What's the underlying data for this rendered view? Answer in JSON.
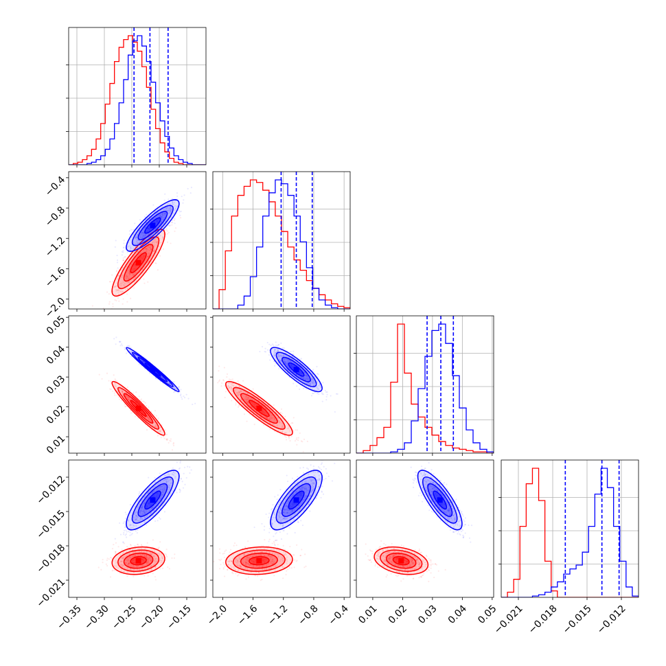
{
  "chart_data": {
    "type": "corner",
    "title": "",
    "grid": true,
    "legend": "none",
    "parameters": [
      {
        "label": "",
        "range": [
          -0.365,
          -0.115
        ],
        "ticks": [
          -0.35,
          -0.3,
          -0.25,
          -0.2,
          -0.15
        ],
        "tick_labels": [
          "−0.35",
          "−0.30",
          "−0.25",
          "−0.20",
          "−0.15"
        ]
      },
      {
        "label": "",
        "range": [
          -2.13,
          -0.32
        ],
        "ticks": [
          -2.0,
          -1.6,
          -1.2,
          -0.8,
          -0.4
        ],
        "tick_labels": [
          "−2.0",
          "−1.6",
          "−1.2",
          "−0.8",
          "−0.4"
        ]
      },
      {
        "label": "",
        "range": [
          0.0045,
          0.0505
        ],
        "ticks": [
          0.01,
          0.02,
          0.03,
          0.04,
          0.05
        ],
        "tick_labels": [
          "0.01",
          "0.02",
          "0.03",
          "0.04",
          "0.05"
        ]
      },
      {
        "label": "",
        "range": [
          -0.0225,
          -0.0105
        ],
        "ticks": [
          -0.021,
          -0.018,
          -0.015,
          -0.012
        ],
        "tick_labels": [
          "−0.021",
          "−0.018",
          "−0.015",
          "−0.012"
        ]
      }
    ],
    "series": [
      {
        "name": "",
        "color": "#ff0000",
        "means": [
          -0.238,
          -1.52,
          0.0195,
          -0.0193
        ],
        "sds": [
          0.024,
          0.22,
          0.0045,
          0.0006
        ],
        "correlations": [
          [
            1,
            2,
            0.85
          ],
          [
            1,
            3,
            -0.95
          ],
          [
            1,
            4,
            0.15
          ],
          [
            2,
            3,
            -0.9
          ],
          [
            2,
            4,
            0.1
          ],
          [
            3,
            4,
            -0.3
          ]
        ],
        "marginals": [
          [
            0,
            1,
            2,
            4,
            7,
            12,
            20,
            32,
            47,
            63,
            80,
            91,
            97,
            100,
            95,
            88,
            76,
            60,
            43,
            28,
            17,
            10,
            5,
            2,
            1,
            0,
            0,
            0,
            0,
            0
          ],
          [
            0,
            15,
            45,
            72,
            88,
            95,
            100,
            98,
            92,
            83,
            72,
            60,
            48,
            38,
            30,
            22,
            16,
            11,
            7,
            4,
            2,
            1
          ],
          [
            0,
            2,
            6,
            12,
            20,
            55,
            100,
            62,
            38,
            28,
            20,
            14,
            9,
            6,
            4,
            3,
            2,
            1,
            1,
            0
          ],
          [
            0,
            4,
            14,
            55,
            88,
            100,
            75,
            28,
            5,
            0,
            0,
            0,
            0,
            0,
            0,
            0,
            0,
            0,
            0,
            0,
            0,
            0
          ]
        ]
      },
      {
        "name": "",
        "color": "#0000ff",
        "means": [
          -0.212,
          -1.03,
          0.0325,
          -0.014
        ],
        "sds": [
          0.024,
          0.17,
          0.0037,
          0.0013
        ],
        "correlations": [
          [
            1,
            2,
            0.85
          ],
          [
            1,
            3,
            -0.98
          ],
          [
            1,
            4,
            0.8
          ],
          [
            2,
            3,
            -0.85
          ],
          [
            2,
            4,
            0.75
          ],
          [
            3,
            4,
            -0.8
          ]
        ],
        "marginals": [
          [
            0,
            0,
            0,
            0,
            1,
            2,
            4,
            7,
            12,
            20,
            32,
            48,
            66,
            85,
            96,
            100,
            92,
            80,
            64,
            48,
            34,
            22,
            13,
            7,
            4,
            2,
            1,
            0,
            0,
            0
          ],
          [
            0,
            0,
            0,
            0,
            3,
            10,
            25,
            48,
            72,
            90,
            100,
            97,
            88,
            72,
            52,
            32,
            16,
            7,
            3,
            1,
            0,
            0
          ],
          [
            0,
            0,
            0,
            0,
            0,
            1,
            3,
            8,
            25,
            50,
            75,
            95,
            100,
            85,
            60,
            35,
            18,
            8,
            3,
            1
          ],
          [
            0,
            0,
            0,
            0,
            0,
            1,
            2,
            4,
            8,
            12,
            18,
            22,
            25,
            35,
            55,
            80,
            100,
            85,
            55,
            28,
            8,
            1
          ]
        ],
        "quantiles": [
          [
            -0.246,
            -0.217,
            -0.184
          ],
          [
            -1.23,
            -1.03,
            -0.82
          ],
          [
            0.0282,
            0.0328,
            0.037
          ],
          [
            -0.0169,
            -0.0137,
            -0.0122
          ]
        ]
      }
    ]
  }
}
